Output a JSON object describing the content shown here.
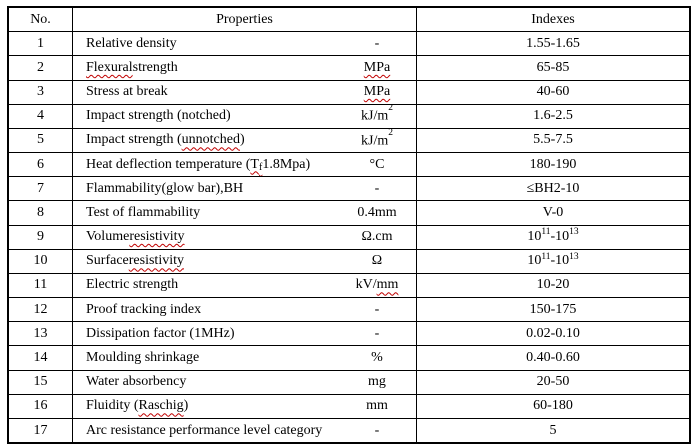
{
  "table": {
    "columns": [
      {
        "label": "No."
      },
      {
        "label": "Properties"
      },
      {
        "label": "Indexes"
      }
    ],
    "wavy_underline_color": "#c00000",
    "border_color": "#000000",
    "rows": [
      {
        "no": "1",
        "property": [
          {
            "text": "Relative density"
          }
        ],
        "unit": [
          {
            "text": "-"
          }
        ],
        "index": [
          {
            "text": "1.55-1.65"
          }
        ]
      },
      {
        "no": "2",
        "property": [
          {
            "text": "Flexural",
            "wavy": true
          },
          {
            "text": " strength"
          }
        ],
        "unit": [
          {
            "text": "MPa",
            "wavy": true
          }
        ],
        "index": [
          {
            "text": "65-85"
          }
        ]
      },
      {
        "no": "3",
        "property": [
          {
            "text": "Stress at break"
          }
        ],
        "unit": [
          {
            "text": "MPa",
            "wavy": true
          }
        ],
        "index": [
          {
            "text": "40-60"
          }
        ]
      },
      {
        "no": "4",
        "property": [
          {
            "text": "Impact strength (notched)"
          }
        ],
        "unit": [
          {
            "text": "kJ/m"
          },
          {
            "text": "2",
            "sup": true
          }
        ],
        "index": [
          {
            "text": "1.6-2.5"
          }
        ]
      },
      {
        "no": "5",
        "property": [
          {
            "text": "Impact strength ("
          },
          {
            "text": "unnotched",
            "wavy": true
          },
          {
            "text": ")"
          }
        ],
        "unit": [
          {
            "text": "kJ/m"
          },
          {
            "text": "2",
            "sup": true
          }
        ],
        "index": [
          {
            "text": "5.5-7.5"
          }
        ]
      },
      {
        "no": "6",
        "property": [
          {
            "text": "Heat deflection temperature ("
          },
          {
            "text": "T",
            "wavy": true
          },
          {
            "text": "f",
            "sub": true,
            "wavy": true
          },
          {
            "text": " 1.8Mpa)"
          }
        ],
        "unit": [
          {
            "text": "°C"
          }
        ],
        "index": [
          {
            "text": "180-190"
          }
        ]
      },
      {
        "no": "7",
        "property": [
          {
            "text": "Flammability(glow bar),BH"
          }
        ],
        "unit": [
          {
            "text": "-"
          }
        ],
        "index": [
          {
            "text": "≤BH2-10"
          }
        ]
      },
      {
        "no": "8",
        "property": [
          {
            "text": "Test of flammability"
          }
        ],
        "unit": [
          {
            "text": "0.4mm"
          }
        ],
        "index": [
          {
            "text": "V-0"
          }
        ]
      },
      {
        "no": "9",
        "property": [
          {
            "text": "Volume "
          },
          {
            "text": "resistivity",
            "wavy": true
          }
        ],
        "unit": [
          {
            "text": "Ω.cm"
          }
        ],
        "index": [
          {
            "text": "10"
          },
          {
            "text": "11",
            "sup": true
          },
          {
            "text": "-10"
          },
          {
            "text": "13",
            "sup": true
          }
        ]
      },
      {
        "no": "10",
        "property": [
          {
            "text": "Surface "
          },
          {
            "text": "resistivity",
            "wavy": true
          }
        ],
        "unit": [
          {
            "text": "Ω"
          }
        ],
        "index": [
          {
            "text": "10"
          },
          {
            "text": "11",
            "sup": true
          },
          {
            "text": "-10"
          },
          {
            "text": "13",
            "sup": true
          }
        ]
      },
      {
        "no": "11",
        "property": [
          {
            "text": "Electric strength"
          }
        ],
        "unit": [
          {
            "text": "kV/"
          },
          {
            "text": "mm",
            "wavy": true
          }
        ],
        "index": [
          {
            "text": "10-20"
          }
        ]
      },
      {
        "no": "12",
        "property": [
          {
            "text": "Proof tracking index"
          }
        ],
        "unit": [
          {
            "text": "-"
          }
        ],
        "index": [
          {
            "text": "150-175"
          }
        ]
      },
      {
        "no": "13",
        "property": [
          {
            "text": "Dissipation factor (1MHz)"
          }
        ],
        "unit": [
          {
            "text": "-"
          }
        ],
        "index": [
          {
            "text": "0.02-0.10"
          }
        ]
      },
      {
        "no": "14",
        "property": [
          {
            "text": "Moulding shrinkage"
          }
        ],
        "unit": [
          {
            "text": "%"
          }
        ],
        "index": [
          {
            "text": "0.40-0.60"
          }
        ]
      },
      {
        "no": "15",
        "property": [
          {
            "text": "Water absorbency"
          }
        ],
        "unit": [
          {
            "text": "mg"
          }
        ],
        "index": [
          {
            "text": "20-50"
          }
        ]
      },
      {
        "no": "16",
        "property": [
          {
            "text": "Fluidity ("
          },
          {
            "text": "Raschig",
            "wavy": true
          },
          {
            "text": ")"
          }
        ],
        "unit": [
          {
            "text": "mm"
          }
        ],
        "index": [
          {
            "text": "60-180"
          }
        ]
      },
      {
        "no": "17",
        "property": [
          {
            "text": "Arc resistance performance level category"
          }
        ],
        "unit": [
          {
            "text": "-"
          }
        ],
        "index": [
          {
            "text": "5"
          }
        ]
      }
    ]
  }
}
